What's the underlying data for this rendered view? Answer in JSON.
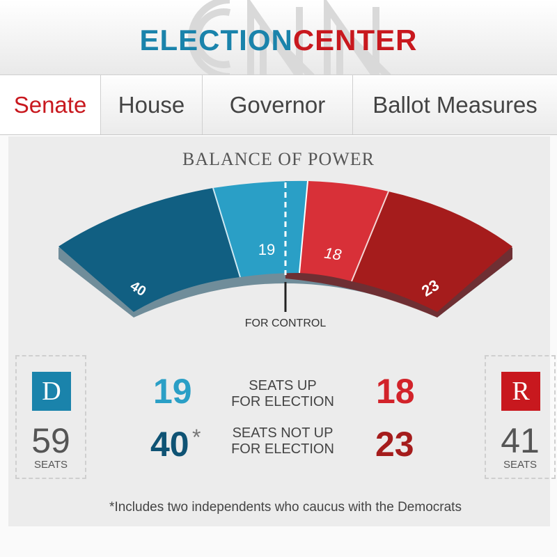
{
  "header": {
    "title_part1": "ELECTION",
    "title_part2": "CENTER"
  },
  "tabs": [
    {
      "label": "Senate",
      "active": true
    },
    {
      "label": "House"
    },
    {
      "label": "Governor"
    },
    {
      "label": "Ballot Measures"
    }
  ],
  "balance": {
    "title": "BALANCE OF POWER",
    "for_control_label": "FOR CONTROL",
    "segments": [
      {
        "party": "D",
        "kind": "not_up",
        "value": "40",
        "color": "#115f82"
      },
      {
        "party": "D",
        "kind": "up",
        "value": "19",
        "color": "#2a9fc6"
      },
      {
        "party": "R",
        "kind": "up",
        "value": "18",
        "color": "#d83038"
      },
      {
        "party": "R",
        "kind": "not_up",
        "value": "23",
        "color": "#a51c1c"
      }
    ]
  },
  "democrats": {
    "badge": "D",
    "seats": "59",
    "seats_label": "SEATS",
    "color": "#1a83ab"
  },
  "republicans": {
    "badge": "R",
    "seats": "41",
    "seats_label": "SEATS",
    "color": "#c8181e"
  },
  "stats": {
    "up_label": "SEATS UP\nFOR ELECTION",
    "not_up_label": "SEATS NOT UP\nFOR ELECTION",
    "d_up": "19",
    "r_up": "18",
    "d_not_up": "40",
    "r_not_up": "23",
    "asterisk": "*"
  },
  "footnote": "*Includes two independents who caucus with the Democrats"
}
